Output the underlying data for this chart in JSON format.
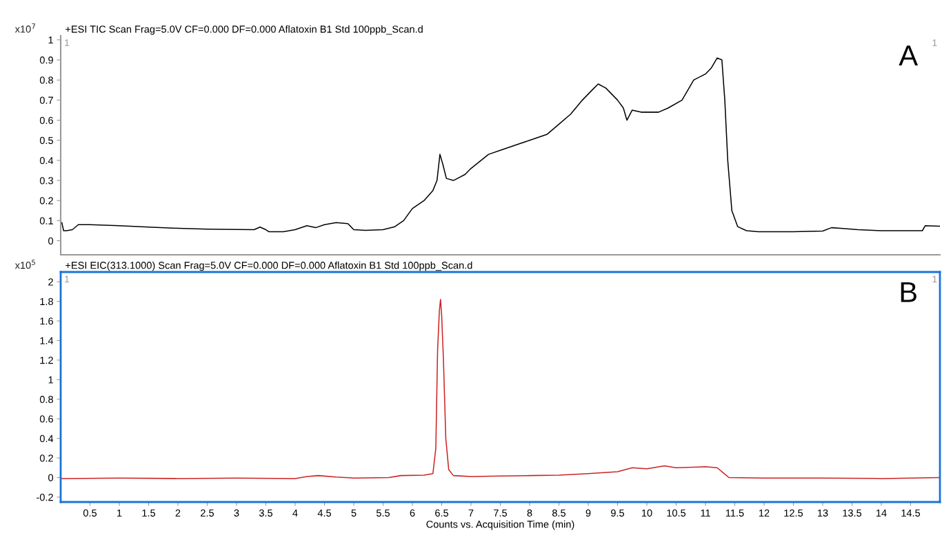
{
  "chart_data": [
    {
      "type": "line",
      "title": "+ESI TIC Scan Frag=5.0V CF=0.000 DF=0.000 Aflatoxin B1 Std 100ppb_Scan.d",
      "annotations": [
        "x10$^{7}$",
        "1",
        "1",
        "A"
      ],
      "x": [
        0.02,
        0.05,
        0.1,
        0.2,
        0.3,
        0.5,
        1.0,
        1.5,
        2.0,
        2.5,
        3.0,
        3.3,
        3.4,
        3.5,
        3.55,
        3.8,
        4.0,
        4.2,
        4.35,
        4.5,
        4.7,
        4.9,
        5.0,
        5.2,
        5.5,
        5.7,
        5.85,
        6.0,
        6.2,
        6.35,
        6.42,
        6.47,
        6.52,
        6.58,
        6.7,
        6.9,
        7.0,
        7.3,
        7.5,
        7.8,
        8.0,
        8.3,
        8.5,
        8.7,
        8.9,
        9.1,
        9.17,
        9.3,
        9.5,
        9.6,
        9.66,
        9.75,
        9.9,
        10.2,
        10.36,
        10.6,
        10.8,
        11.0,
        11.1,
        11.2,
        11.28,
        11.33,
        11.38,
        11.45,
        11.55,
        11.7,
        11.9,
        12.5,
        13.0,
        13.15,
        13.3,
        13.6,
        14.0,
        14.7,
        14.75,
        15.0
      ],
      "series": [
        {
          "color": "#000000",
          "values": [
            0.09,
            0.05,
            0.05,
            0.055,
            0.08,
            0.08,
            0.075,
            0.068,
            0.062,
            0.058,
            0.056,
            0.055,
            0.068,
            0.055,
            0.045,
            0.045,
            0.055,
            0.075,
            0.065,
            0.08,
            0.09,
            0.085,
            0.055,
            0.052,
            0.055,
            0.07,
            0.1,
            0.16,
            0.2,
            0.25,
            0.3,
            0.43,
            0.38,
            0.31,
            0.3,
            0.33,
            0.36,
            0.43,
            0.45,
            0.48,
            0.5,
            0.53,
            0.58,
            0.63,
            0.7,
            0.76,
            0.78,
            0.76,
            0.7,
            0.66,
            0.6,
            0.65,
            0.64,
            0.64,
            0.66,
            0.7,
            0.8,
            0.83,
            0.86,
            0.91,
            0.9,
            0.7,
            0.4,
            0.15,
            0.07,
            0.05,
            0.045,
            0.045,
            0.048,
            0.065,
            0.062,
            0.055,
            0.05,
            0.05,
            0.075,
            0.072
          ]
        }
      ],
      "xlim": [
        0,
        15
      ],
      "xticks": [
        0.5,
        1,
        1.5,
        2,
        2.5,
        3,
        3.5,
        4,
        4.5,
        5,
        5.5,
        6,
        6.5,
        7,
        7.5,
        8,
        8.5,
        9,
        9.5,
        10,
        10.5,
        11,
        11.5,
        12,
        12.5,
        13,
        13.5,
        14,
        14.5
      ],
      "ylim": [
        -0.07,
        1.02
      ],
      "yticks": [
        0,
        0.1,
        0.2,
        0.3,
        0.4,
        0.5,
        0.6,
        0.7,
        0.8,
        0.9,
        1
      ],
      "tick_labels": "y",
      "grid": false,
      "legend": false
    },
    {
      "type": "line",
      "title": "+ESI EIC(313.1000) Scan Frag=5.0V CF=0.000 DF=0.000 Aflatoxin B1 Std 100ppb_Scan.d",
      "xlabel": "Counts vs. Acquisition Time (min)",
      "annotations": [
        "x10$^{5}$",
        "1",
        "1",
        "B"
      ],
      "x": [
        0.02,
        1,
        2,
        3,
        4,
        4.2,
        4.4,
        4.7,
        5,
        5.6,
        5.8,
        6.2,
        6.35,
        6.4,
        6.43,
        6.46,
        6.48,
        6.5,
        6.53,
        6.57,
        6.62,
        6.7,
        7,
        7.5,
        8,
        8.5,
        9,
        9.5,
        9.75,
        10,
        10.3,
        10.5,
        11,
        11.2,
        11.3,
        11.4,
        12,
        13,
        14,
        15
      ],
      "series": [
        {
          "color": "#cc2222",
          "values": [
            -0.01,
            -0.005,
            -0.01,
            -0.005,
            -0.01,
            0.01,
            0.02,
            0.005,
            -0.005,
            0.0,
            0.02,
            0.025,
            0.04,
            0.3,
            1.3,
            1.7,
            1.82,
            1.65,
            1.2,
            0.4,
            0.08,
            0.02,
            0.01,
            0.015,
            0.02,
            0.025,
            0.04,
            0.06,
            0.1,
            0.09,
            0.12,
            0.1,
            0.11,
            0.1,
            0.05,
            0.0,
            -0.005,
            -0.005,
            -0.01,
            0.0
          ]
        }
      ],
      "xlim": [
        0,
        15
      ],
      "xticks": [
        0.5,
        1,
        1.5,
        2,
        2.5,
        3,
        3.5,
        4,
        4.5,
        5,
        5.5,
        6,
        6.5,
        7,
        7.5,
        8,
        8.5,
        9,
        9.5,
        10,
        10.5,
        11,
        11.5,
        12,
        12.5,
        13,
        13.5,
        14,
        14.5
      ],
      "ylim": [
        -0.25,
        2.1
      ],
      "yticks": [
        -0.2,
        0,
        0.2,
        0.4,
        0.6,
        0.8,
        1,
        1.2,
        1.4,
        1.6,
        1.8,
        2
      ],
      "grid": false,
      "legend": false
    }
  ]
}
